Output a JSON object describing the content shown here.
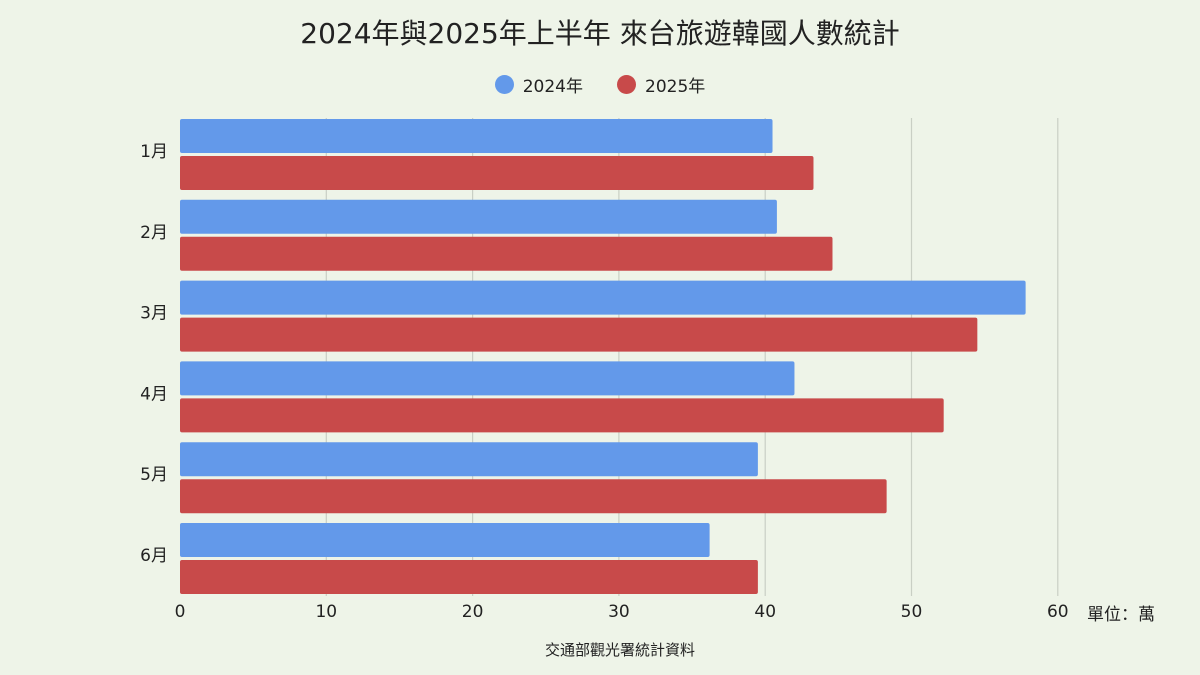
{
  "chart_data": {
    "type": "bar",
    "orientation": "horizontal",
    "title": "2024年與2025年上半年 來台旅遊韓國人數統計",
    "categories": [
      "1月",
      "2月",
      "3月",
      "4月",
      "5月",
      "6月"
    ],
    "series": [
      {
        "name": "2024年",
        "color": "#6399ea",
        "values": [
          40.5,
          40.8,
          57.8,
          42.0,
          39.5,
          36.2
        ]
      },
      {
        "name": "2025年",
        "color": "#c84a4a",
        "values": [
          43.3,
          44.6,
          54.5,
          52.2,
          48.3,
          39.5
        ]
      }
    ],
    "xlim": [
      0,
      60
    ],
    "xticks": [
      0,
      10,
      20,
      30,
      40,
      50,
      60
    ],
    "grid": true,
    "legend_position": "top-center",
    "unit_label": "單位：萬",
    "source": "交通部觀光署統計資料"
  }
}
